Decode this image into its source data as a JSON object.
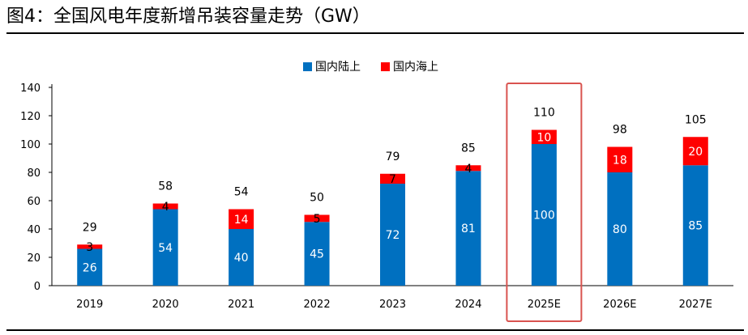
{
  "title": "图4：全国风电年度新增吊装容量走势（GW）",
  "chart_data": {
    "type": "bar",
    "stacked": true,
    "title": "图4：全国风电年度新增吊装容量走势（GW）",
    "categories": [
      "2019",
      "2020",
      "2021",
      "2022",
      "2023",
      "2024",
      "2025E",
      "2026E",
      "2027E"
    ],
    "series": [
      {
        "name": "国内陆上",
        "color": "#0070C0",
        "values": [
          26,
          54,
          40,
          45,
          72,
          81,
          100,
          80,
          85
        ]
      },
      {
        "name": "国内海上",
        "color": "#FF0000",
        "values": [
          3,
          4,
          14,
          5,
          7,
          4,
          10,
          18,
          20
        ]
      }
    ],
    "totals": [
      29,
      58,
      54,
      50,
      79,
      85,
      110,
      98,
      105
    ],
    "ylim": [
      0,
      140
    ],
    "yticks": [
      0,
      20,
      40,
      60,
      80,
      100,
      120,
      140
    ],
    "legend": "top-center",
    "highlight_category": "2025E",
    "highlight_color": "#D9534F",
    "xlabel": "",
    "ylabel": ""
  }
}
